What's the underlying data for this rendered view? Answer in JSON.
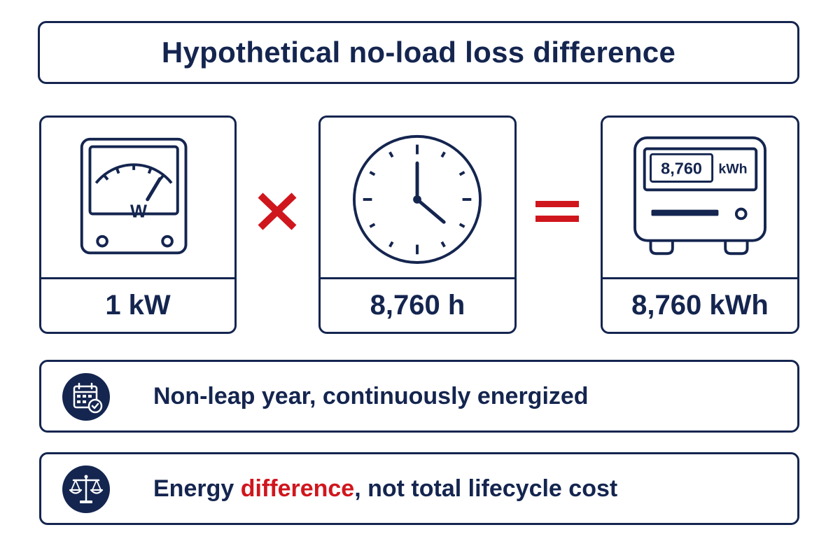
{
  "title": "Hypothetical no-load loss difference",
  "cards": [
    {
      "value": "1 kW",
      "icon": "wattmeter-icon",
      "icon_label": "W"
    },
    {
      "value": "8,760 h",
      "icon": "clock-icon"
    },
    {
      "value": "8,760 kWh",
      "icon": "energy-meter-icon",
      "display_value": "8,760",
      "display_unit": "kWh"
    }
  ],
  "operators": {
    "multiply": "multiply-sign",
    "equals": "equals-sign"
  },
  "notes": [
    {
      "icon": "calendar-check-icon",
      "text": "Non-leap year, continuously energized"
    },
    {
      "icon": "balance-scale-icon",
      "text_before": "Energy ",
      "text_accent": "difference",
      "text_after": ", not total lifecycle cost"
    }
  ],
  "colors": {
    "navy": "#14254f",
    "accent_red": "#d0161d",
    "background": "#ffffff"
  }
}
